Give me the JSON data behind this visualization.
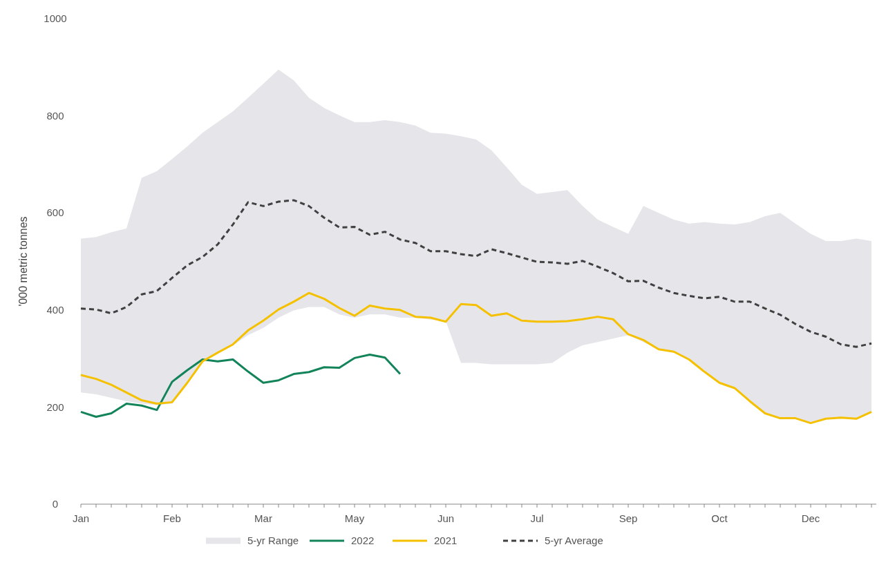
{
  "chart_data": {
    "type": "line",
    "ylabel": "'000 metric tonnes",
    "categories": [
      "Jan",
      null,
      null,
      null,
      null,
      null,
      "Feb",
      null,
      null,
      null,
      null,
      null,
      "Mar",
      null,
      null,
      null,
      null,
      null,
      "May",
      null,
      null,
      null,
      null,
      null,
      "Jun",
      null,
      null,
      null,
      null,
      null,
      "Jul",
      null,
      null,
      null,
      null,
      null,
      "Sep",
      null,
      null,
      null,
      null,
      null,
      "Oct",
      null,
      null,
      null,
      null,
      null,
      "Dec",
      null,
      null,
      null,
      null
    ],
    "ylim": [
      0,
      1000
    ],
    "yticks": [
      0,
      200,
      400,
      600,
      800,
      1000
    ],
    "grid": false,
    "legend": "bottom",
    "series": [
      {
        "name": "5-yr Range",
        "type": "area",
        "color": "#e6e6ea",
        "values": [
          null,
          null,
          null,
          null,
          null,
          null,
          null,
          null,
          null,
          null,
          null,
          null,
          null,
          null,
          null,
          null,
          null,
          null,
          null,
          null,
          null,
          null,
          null,
          null,
          null,
          null,
          null,
          null,
          null,
          null,
          null,
          null,
          null,
          null,
          null,
          null,
          null,
          null,
          null,
          null,
          null,
          null,
          null,
          null,
          null,
          null,
          null,
          null,
          null,
          null,
          null,
          null,
          null
        ],
        "upper": [
          547,
          550,
          560,
          568,
          672,
          686,
          711,
          737,
          765,
          787,
          809,
          837,
          866,
          895,
          873,
          837,
          816,
          801,
          787,
          787,
          791,
          787,
          780,
          765,
          763,
          758,
          751,
          729,
          694,
          658,
          639,
          643,
          647,
          614,
          586,
          571,
          557,
          614,
          600,
          586,
          578,
          581,
          578,
          576,
          581,
          593,
          600,
          578,
          557,
          542,
          542,
          547,
          542
        ],
        "lower": [
          230,
          226,
          219,
          212,
          207,
          204,
          207,
          247,
          291,
          312,
          327,
          348,
          363,
          384,
          399,
          406,
          406,
          391,
          384,
          391,
          391,
          384,
          384,
          380,
          377,
          291,
          291,
          288,
          288,
          288,
          288,
          291,
          312,
          327,
          334,
          341,
          348,
          334,
          319,
          312,
          298,
          276,
          250,
          239,
          212,
          187,
          177,
          177,
          167,
          176,
          178,
          176,
          190
        ]
      },
      {
        "name": "2022",
        "color": "#13845a",
        "values": [
          190,
          180,
          187,
          207,
          203,
          194,
          252,
          276,
          298,
          294,
          298,
          273,
          250,
          255,
          268,
          272,
          282,
          281,
          301,
          308,
          302,
          268,
          null,
          null,
          null,
          null,
          null,
          null,
          null,
          null,
          null,
          null,
          null,
          null,
          null,
          null,
          null,
          null,
          null,
          null,
          null,
          null,
          null,
          null,
          null,
          null,
          null,
          null,
          null,
          null,
          null,
          null,
          null
        ]
      },
      {
        "name": "2021",
        "color": "#f5c000",
        "values": [
          266,
          258,
          246,
          230,
          214,
          207,
          210,
          250,
          294,
          312,
          329,
          358,
          378,
          401,
          417,
          435,
          423,
          404,
          388,
          409,
          403,
          400,
          386,
          384,
          376,
          412,
          410,
          388,
          393,
          378,
          376,
          376,
          377,
          381,
          386,
          381,
          350,
          338,
          319,
          314,
          298,
          273,
          250,
          239,
          212,
          187,
          177,
          177,
          167,
          176,
          178,
          176,
          190
        ]
      },
      {
        "name": "5-yr Average",
        "color": "#404040",
        "line_style": "dashed",
        "values": [
          403,
          401,
          393,
          406,
          432,
          439,
          466,
          492,
          509,
          535,
          576,
          622,
          614,
          623,
          626,
          614,
          590,
          570,
          571,
          555,
          561,
          545,
          538,
          521,
          521,
          515,
          511,
          525,
          517,
          508,
          499,
          498,
          495,
          501,
          489,
          476,
          459,
          460,
          446,
          435,
          429,
          424,
          427,
          417,
          417,
          403,
          390,
          371,
          355,
          345,
          329,
          324,
          331
        ]
      }
    ]
  }
}
